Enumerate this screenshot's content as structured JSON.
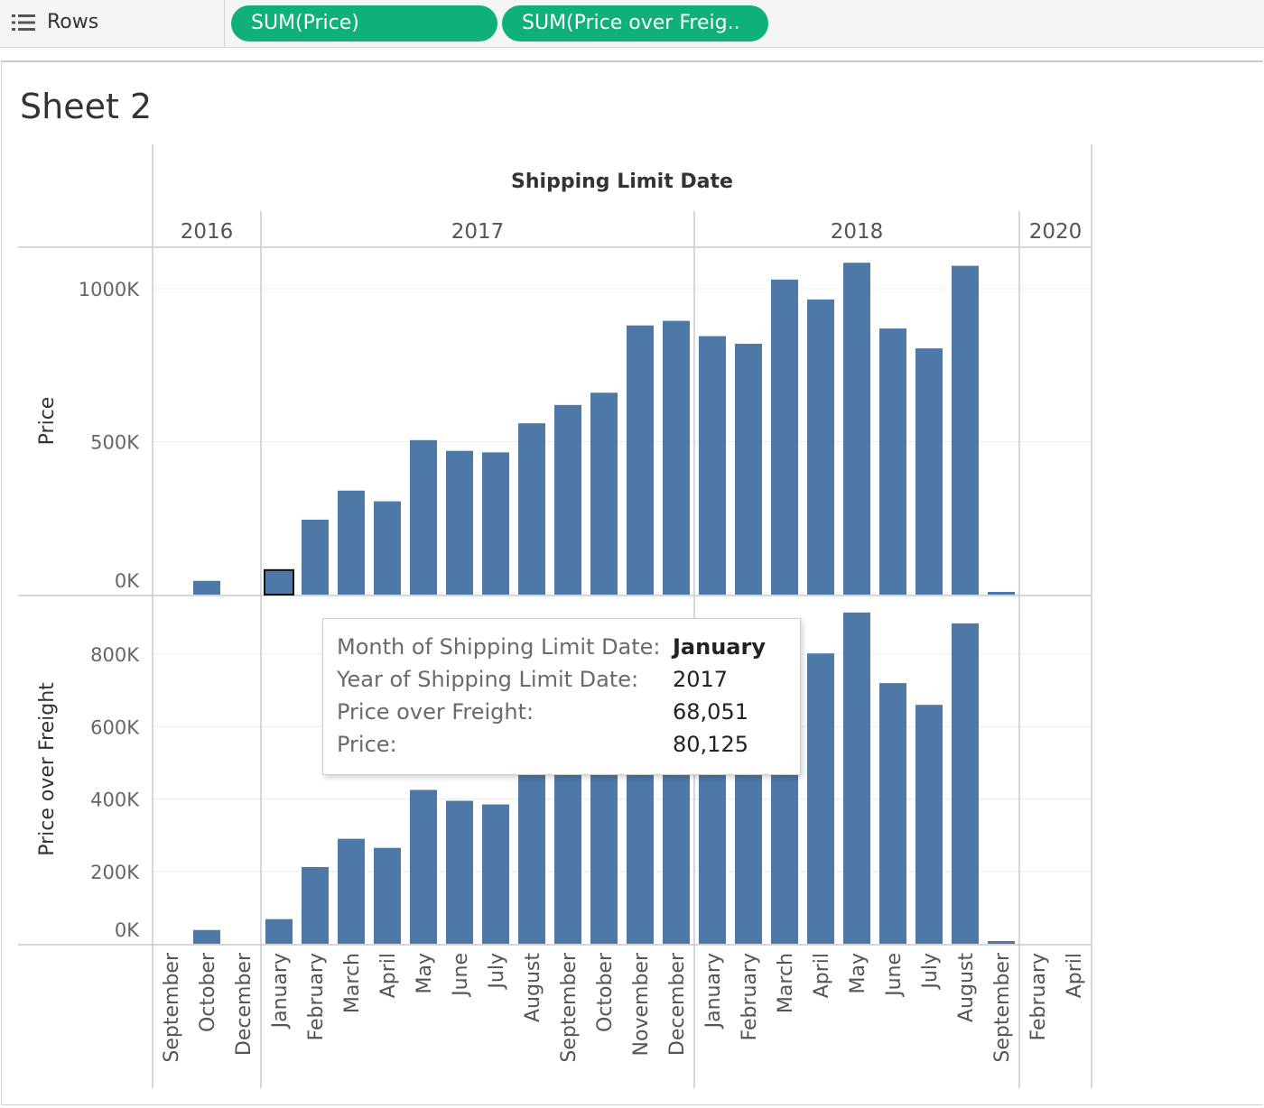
{
  "shelf": {
    "label": "Rows",
    "pills": [
      "SUM(Price)",
      "SUM(Price over Freig.."
    ]
  },
  "sheet": {
    "title": "Sheet 2"
  },
  "colors": {
    "bar": "#4e79a7",
    "pill": "#0fb07a"
  },
  "chart_data": {
    "type": "bar",
    "column_header": "Shipping Limit Date",
    "years": [
      "2016",
      "2017",
      "2018",
      "2020"
    ],
    "x": [
      {
        "year": "2016",
        "month": "September"
      },
      {
        "year": "2016",
        "month": "October"
      },
      {
        "year": "2016",
        "month": "December"
      },
      {
        "year": "2017",
        "month": "January"
      },
      {
        "year": "2017",
        "month": "February"
      },
      {
        "year": "2017",
        "month": "March"
      },
      {
        "year": "2017",
        "month": "April"
      },
      {
        "year": "2017",
        "month": "May"
      },
      {
        "year": "2017",
        "month": "June"
      },
      {
        "year": "2017",
        "month": "July"
      },
      {
        "year": "2017",
        "month": "August"
      },
      {
        "year": "2017",
        "month": "September"
      },
      {
        "year": "2017",
        "month": "October"
      },
      {
        "year": "2017",
        "month": "November"
      },
      {
        "year": "2017",
        "month": "December"
      },
      {
        "year": "2018",
        "month": "January"
      },
      {
        "year": "2018",
        "month": "February"
      },
      {
        "year": "2018",
        "month": "March"
      },
      {
        "year": "2018",
        "month": "April"
      },
      {
        "year": "2018",
        "month": "May"
      },
      {
        "year": "2018",
        "month": "June"
      },
      {
        "year": "2018",
        "month": "July"
      },
      {
        "year": "2018",
        "month": "August"
      },
      {
        "year": "2018",
        "month": "September"
      },
      {
        "year": "2020",
        "month": "February"
      },
      {
        "year": "2020",
        "month": "April"
      }
    ],
    "series": [
      {
        "name": "Price",
        "ylabel": "Price",
        "ylim": [
          0,
          1100000
        ],
        "ticks": [
          0,
          500000,
          1000000
        ],
        "tick_labels": [
          "0K",
          "500K",
          "1000K"
        ],
        "values": [
          0,
          45000,
          0,
          80125,
          245000,
          340000,
          305000,
          505000,
          470000,
          465000,
          560000,
          620000,
          660000,
          880000,
          895000,
          845000,
          820000,
          1030000,
          965000,
          1085000,
          870000,
          805000,
          1075000,
          8000,
          0,
          0
        ]
      },
      {
        "name": "Price over Freight",
        "ylabel": "Price over Freight",
        "ylim": [
          0,
          920000
        ],
        "ticks": [
          0,
          200000,
          400000,
          600000,
          800000
        ],
        "tick_labels": [
          "0K",
          "200K",
          "400K",
          "600K",
          "800K"
        ],
        "values": [
          0,
          38000,
          0,
          68051,
          212000,
          290000,
          265000,
          425000,
          395000,
          385000,
          480000,
          520000,
          560000,
          740000,
          760000,
          730000,
          700000,
          870000,
          802000,
          915000,
          720000,
          660000,
          885000,
          6000,
          0,
          0
        ]
      }
    ],
    "highlighted_index": 3,
    "grid": true
  },
  "tooltip": {
    "rows": [
      {
        "key": "Month of Shipping Limit Date:",
        "value": "January"
      },
      {
        "key": "Year of Shipping Limit Date:",
        "value": "2017"
      },
      {
        "key": "Price over Freight:",
        "value": "68,051"
      },
      {
        "key": "Price:",
        "value": "80,125"
      }
    ]
  }
}
